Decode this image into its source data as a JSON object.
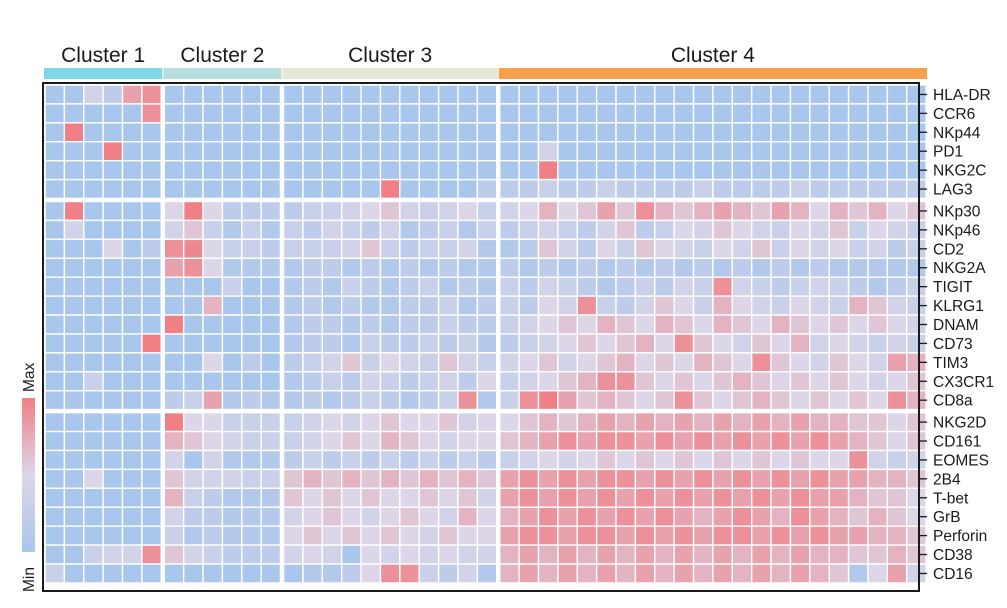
{
  "chart_data": {
    "type": "heatmap",
    "title": "",
    "xlabel": "",
    "ylabel": "",
    "scale": {
      "min_label": "Min",
      "max_label": "Max",
      "min_color": "#a9c6ec",
      "max_color": "#f07f86",
      "mid_color": "#dcd6e8"
    },
    "clusters": [
      {
        "label": "Cluster 1",
        "color": "#7fd8e8",
        "columns": 6
      },
      {
        "label": "Cluster 2",
        "color": "#b7dfe0",
        "columns": 6
      },
      {
        "label": "Cluster 3",
        "color": "#e6e7d5",
        "columns": 11
      },
      {
        "label": "Cluster 4",
        "color": "#f5a04c",
        "columns": 22
      }
    ],
    "row_groups": [
      6,
      11,
      9
    ],
    "rows": [
      "HLA-DR",
      "CCR6",
      "NKp44",
      "PD1",
      "NKG2C",
      "LAG3",
      "NKp30",
      "NKp46",
      "CD2",
      "NKG2A",
      "TIGIT",
      "KLRG1",
      "DNAM",
      "CD73",
      "TIM3",
      "CX3CR1",
      "CD8a",
      "NKG2D",
      "CD161",
      "EOMES",
      "2B4",
      "T-bet",
      "GrB",
      "Perforin",
      "CD38",
      "CD16"
    ],
    "values": [
      [
        0,
        0,
        0.4,
        0.2,
        0.8,
        0.9,
        0,
        0,
        0,
        0,
        0,
        0,
        0,
        0,
        0,
        0,
        0,
        0,
        0,
        0,
        0,
        0,
        0,
        0,
        0,
        0,
        0,
        0,
        0,
        0,
        0,
        0,
        0,
        0,
        0,
        0,
        0,
        0,
        0,
        0,
        0,
        0,
        0,
        0,
        0
      ],
      [
        0,
        0,
        0,
        0,
        0,
        0.9,
        0,
        0,
        0,
        0,
        0,
        0,
        0,
        0,
        0,
        0,
        0,
        0,
        0,
        0,
        0,
        0,
        0,
        0,
        0,
        0,
        0,
        0,
        0,
        0,
        0,
        0,
        0,
        0,
        0,
        0,
        0,
        0,
        0,
        0,
        0,
        0,
        0,
        0,
        0
      ],
      [
        0,
        1,
        0,
        0,
        0,
        0,
        0,
        0,
        0,
        0,
        0,
        0,
        0,
        0,
        0,
        0,
        0,
        0,
        0,
        0,
        0,
        0,
        0,
        0,
        0,
        0,
        0,
        0,
        0,
        0,
        0,
        0,
        0,
        0,
        0,
        0,
        0,
        0,
        0,
        0,
        0,
        0,
        0,
        0,
        0
      ],
      [
        0,
        0,
        0,
        1,
        0,
        0,
        0,
        0,
        0,
        0,
        0,
        0,
        0,
        0,
        0,
        0,
        0,
        0,
        0,
        0,
        0,
        0,
        0,
        0,
        0,
        0.4,
        0,
        0,
        0,
        0,
        0,
        0,
        0,
        0,
        0,
        0,
        0,
        0,
        0,
        0,
        0,
        0,
        0,
        0,
        0
      ],
      [
        0,
        0,
        0,
        0,
        0,
        0,
        0,
        0,
        0,
        0,
        0,
        0,
        0,
        0,
        0,
        0,
        0,
        0,
        0,
        0,
        0,
        0,
        0,
        0,
        0,
        1,
        0,
        0,
        0,
        0,
        0,
        0,
        0,
        0,
        0,
        0,
        0,
        0,
        0,
        0,
        0,
        0,
        0,
        0,
        0
      ],
      [
        0,
        0,
        0,
        0,
        0,
        0,
        0,
        0,
        0,
        0,
        0,
        0,
        0,
        0,
        0,
        0,
        0,
        1,
        0,
        0,
        0,
        0,
        0.2,
        0.2,
        0.2,
        0.3,
        0.2,
        0.2,
        0.3,
        0.2,
        0.2,
        0.2,
        0.2,
        0.3,
        0.2,
        0.2,
        0.2,
        0.2,
        0.3,
        0.2,
        0.2,
        0.2,
        0.2,
        0.2,
        0.2
      ],
      [
        0,
        1,
        0,
        0,
        0,
        0,
        0.5,
        1,
        0.5,
        0.2,
        0.2,
        0.2,
        0.2,
        0.3,
        0.3,
        0.4,
        0.5,
        0.6,
        0.4,
        0.3,
        0.4,
        0.5,
        0.3,
        0.4,
        0.5,
        0.7,
        0.5,
        0.6,
        0.8,
        0.6,
        0.9,
        0.7,
        0.6,
        0.7,
        0.8,
        0.7,
        0.6,
        0.8,
        0.7,
        0.5,
        0.7,
        0.6,
        0.7,
        0.5,
        0.6
      ],
      [
        0,
        0.4,
        0,
        0,
        0,
        0,
        0.4,
        0.6,
        0.3,
        0.1,
        0.3,
        0.1,
        0.3,
        0.2,
        0.4,
        0.3,
        0.2,
        0.4,
        0.1,
        0.2,
        0.3,
        0.1,
        0.3,
        0.2,
        0.3,
        0.4,
        0.3,
        0.2,
        0.4,
        0.6,
        0.2,
        0.3,
        0.5,
        0.4,
        0.6,
        0.5,
        0.4,
        0.3,
        0.5,
        0.4,
        0.6,
        0.3,
        0.5,
        0.4,
        0.3
      ],
      [
        0,
        0,
        0,
        0.5,
        0,
        0.2,
        0.9,
        0.95,
        0.5,
        0.3,
        0.3,
        0.2,
        0.3,
        0.3,
        0.3,
        0.4,
        0.6,
        0.3,
        0.2,
        0.3,
        0.3,
        0.4,
        0.1,
        0.1,
        0.2,
        0.6,
        0.4,
        0.2,
        0.5,
        0.3,
        0.6,
        0.5,
        0.4,
        0.3,
        0.5,
        0.4,
        0.6,
        0.3,
        0.5,
        0.4,
        0.5,
        0.3,
        0.4,
        0.2,
        0.3
      ],
      [
        0,
        0,
        0,
        0,
        0,
        0,
        0.8,
        0.9,
        0.5,
        0.1,
        0.1,
        0.1,
        0.1,
        0.2,
        0.2,
        0.1,
        0.2,
        0.1,
        0.2,
        0.1,
        0.2,
        0.1,
        0.1,
        0.2,
        0.1,
        0.2,
        0.1,
        0.2,
        0.1,
        0.2,
        0.1,
        0.2,
        0.1,
        0.2,
        0.1,
        0.2,
        0.1,
        0.2,
        0.1,
        0.2,
        0.1,
        0.1,
        0.1,
        0.1,
        0.1
      ],
      [
        0,
        0,
        0,
        0,
        0,
        0,
        0,
        0,
        0,
        0.3,
        0,
        0,
        0.1,
        0.2,
        0.1,
        0.3,
        0.2,
        0.1,
        0.2,
        0.3,
        0.1,
        0.2,
        0.1,
        0.3,
        0.2,
        0.4,
        0.3,
        0.2,
        0.1,
        0.2,
        0.3,
        0.2,
        0.4,
        0.3,
        0.9,
        0.4,
        0.3,
        0.2,
        0.3,
        0.4,
        0.3,
        0.2,
        0.1,
        0.2,
        0.3
      ],
      [
        0,
        0,
        0,
        0,
        0,
        0,
        0,
        0,
        0.7,
        0,
        0,
        0,
        0.1,
        0.2,
        0.1,
        0.2,
        0.1,
        0.1,
        0.2,
        0.2,
        0.3,
        0.1,
        0.2,
        0.3,
        0.2,
        0.5,
        0.4,
        0.9,
        0.3,
        0.2,
        0.4,
        0.6,
        0.5,
        0.3,
        0.7,
        0.5,
        0.4,
        0.3,
        0.5,
        0.4,
        0.3,
        0.7,
        0.6,
        0.4,
        0.3
      ],
      [
        0,
        0,
        0,
        0,
        0,
        0,
        1,
        0,
        0,
        0,
        0,
        0,
        0.1,
        0.2,
        0.2,
        0.1,
        0.2,
        0.1,
        0.2,
        0.2,
        0.3,
        0.2,
        0.2,
        0.3,
        0.4,
        0.5,
        0.6,
        0.5,
        0.7,
        0.6,
        0.5,
        0.7,
        0.6,
        0.5,
        0.7,
        0.6,
        0.5,
        0.7,
        0.6,
        0.5,
        0.6,
        0.5,
        0.6,
        0.5,
        0.4
      ],
      [
        0,
        0,
        0,
        0,
        0,
        1,
        0,
        0,
        0,
        0,
        0,
        0,
        0.1,
        0.2,
        0.2,
        0.1,
        0.3,
        0.2,
        0.2,
        0.3,
        0.2,
        0.3,
        0.1,
        0.2,
        0.3,
        0.4,
        0.5,
        0.6,
        0.5,
        0.6,
        0.7,
        0.5,
        0.9,
        0.6,
        0.5,
        0.4,
        0.6,
        0.5,
        0.7,
        0.4,
        0.5,
        0.4,
        0.3,
        0.4,
        0.3
      ],
      [
        0,
        0,
        0,
        0,
        0,
        0,
        0,
        0,
        0.5,
        0,
        0.2,
        0,
        0.2,
        0.3,
        0.4,
        0.6,
        0.3,
        0.5,
        0.4,
        0.3,
        0.6,
        0.4,
        0.3,
        0.4,
        0.5,
        0.6,
        0.4,
        0.5,
        0.6,
        0.7,
        0.5,
        0.6,
        0.5,
        0.7,
        0.6,
        0.5,
        0.9,
        0.6,
        0.5,
        0.4,
        0.6,
        0.5,
        0.4,
        0.8,
        0.7
      ],
      [
        0,
        0,
        0.3,
        0,
        0,
        0,
        0,
        0,
        0,
        0,
        0,
        0,
        0.1,
        0.2,
        0.3,
        0.2,
        0.4,
        0.3,
        0.2,
        0.3,
        0.4,
        0.2,
        0.5,
        0.3,
        0.4,
        0.5,
        0.6,
        0.7,
        0.9,
        0.9,
        0.6,
        0.5,
        0.6,
        0.5,
        0.6,
        0.7,
        0.6,
        0.5,
        0.6,
        0.5,
        0.6,
        0.5,
        0.4,
        0.5,
        0.6
      ],
      [
        0,
        0,
        0,
        0,
        0,
        0,
        0.2,
        0.3,
        0.8,
        0.1,
        0.2,
        0.1,
        0.1,
        0.2,
        0.1,
        0.2,
        0.3,
        0.2,
        0.1,
        0.2,
        0.3,
        0.9,
        0.1,
        0.3,
        0.9,
        1,
        0.8,
        0.6,
        0.7,
        0.6,
        0.5,
        0.6,
        0.9,
        0.6,
        0.5,
        0.6,
        0.7,
        0.6,
        0.5,
        0.6,
        0.5,
        0.6,
        0.5,
        0.9,
        0.7
      ],
      [
        0,
        0,
        0,
        0,
        0,
        0,
        1,
        0.5,
        0.5,
        0.3,
        0.3,
        0.3,
        0.3,
        0.4,
        0.5,
        0.4,
        0.5,
        0.6,
        0.5,
        0.5,
        0.6,
        0.4,
        0.5,
        0.5,
        0.6,
        0.7,
        0.6,
        0.7,
        0.8,
        0.7,
        0.8,
        0.7,
        0.8,
        0.7,
        0.8,
        0.7,
        0.8,
        0.7,
        0.8,
        0.7,
        0.7,
        0.6,
        0.6,
        0.5,
        0.6
      ],
      [
        0,
        0,
        0,
        0,
        0,
        0,
        0.7,
        0.6,
        0.5,
        0.4,
        0.3,
        0.3,
        0.3,
        0.4,
        0.5,
        0.6,
        0.5,
        0.7,
        0.6,
        0.5,
        0.4,
        0.5,
        0.5,
        0.6,
        0.7,
        0.8,
        0.9,
        0.8,
        0.9,
        0.9,
        0.8,
        0.9,
        0.8,
        0.9,
        0.8,
        0.9,
        0.8,
        0.9,
        0.8,
        0.9,
        0.8,
        0.7,
        0.6,
        0.5,
        0.6
      ],
      [
        0,
        0,
        0,
        0,
        0,
        0,
        0.4,
        0,
        0.4,
        0.1,
        0.1,
        0.1,
        0.2,
        0.3,
        0.2,
        0.3,
        0.2,
        0.3,
        0.2,
        0.3,
        0.2,
        0.3,
        0.2,
        0.3,
        0.4,
        0.5,
        0.4,
        0.5,
        0.6,
        0.5,
        0.6,
        0.5,
        0.6,
        0.5,
        0.6,
        0.5,
        0.6,
        0.5,
        0.6,
        0.5,
        0.5,
        0.9,
        0.4,
        0.3,
        0.4
      ],
      [
        0,
        0,
        0.5,
        0,
        0,
        0,
        0.6,
        0.4,
        0.4,
        0.4,
        0.3,
        0.3,
        0.6,
        0.7,
        0.6,
        0.7,
        0.6,
        0.7,
        0.6,
        0.7,
        0.6,
        0.7,
        0.6,
        0.8,
        0.9,
        0.8,
        0.9,
        0.8,
        0.9,
        0.9,
        0.8,
        0.9,
        0.8,
        0.9,
        0.8,
        0.9,
        0.8,
        0.9,
        0.8,
        0.9,
        0.8,
        0.8,
        0.7,
        0.7,
        0.6
      ],
      [
        0,
        0,
        0,
        0,
        0,
        0,
        0.7,
        0.3,
        0.2,
        0.1,
        0.1,
        0.1,
        0.6,
        0.5,
        0.6,
        0.5,
        0.6,
        0.5,
        0.5,
        0.6,
        0.5,
        0.6,
        0.4,
        0.8,
        0.9,
        0.8,
        0.9,
        0.8,
        0.9,
        0.8,
        0.9,
        0.8,
        0.9,
        0.8,
        0.9,
        0.8,
        0.9,
        0.8,
        0.9,
        0.8,
        0.8,
        0.7,
        0.6,
        0.6,
        0.5
      ],
      [
        0,
        0,
        0,
        0,
        0,
        0,
        0.4,
        0.2,
        0.2,
        0.1,
        0.1,
        0.1,
        0.4,
        0.5,
        0.6,
        0.5,
        0.4,
        0.5,
        0.6,
        0.5,
        0.4,
        0.7,
        0.5,
        0.7,
        0.8,
        0.9,
        0.8,
        0.9,
        0.8,
        0.9,
        0.8,
        0.9,
        0.8,
        0.7,
        0.8,
        0.9,
        0.8,
        0.7,
        0.9,
        0.8,
        0.7,
        0.6,
        0.7,
        0.6,
        0.5
      ],
      [
        0,
        0,
        0,
        0,
        0,
        0,
        0.3,
        0.1,
        0.2,
        0.1,
        0.1,
        0.1,
        0.5,
        0.6,
        0.5,
        0.6,
        0.5,
        0.6,
        0.5,
        0.4,
        0.6,
        0.5,
        0.5,
        0.8,
        0.9,
        0.9,
        0.8,
        0.9,
        0.9,
        0.8,
        0.9,
        0.8,
        0.9,
        0.8,
        0.9,
        0.9,
        0.8,
        0.9,
        0.8,
        0.9,
        0.8,
        0.8,
        0.7,
        0.7,
        0.6
      ],
      [
        0,
        0,
        0.3,
        0.4,
        0.4,
        0.9,
        0.6,
        0.4,
        0.3,
        0.2,
        0.2,
        0.2,
        0.4,
        0.5,
        0.4,
        0.0,
        0.5,
        0.4,
        0.5,
        0.4,
        0.5,
        0.4,
        0.4,
        0.7,
        0.8,
        0.7,
        0.8,
        0.7,
        0.8,
        0.7,
        0.8,
        0.7,
        0.8,
        0.7,
        0.8,
        0.7,
        0.8,
        0.7,
        0.8,
        0.7,
        0.7,
        0.6,
        0.6,
        0.7,
        0.6
      ],
      [
        0.3,
        0,
        0,
        0,
        0,
        0,
        0,
        0,
        0,
        0,
        0,
        0,
        0,
        0.1,
        0.1,
        0.2,
        0.5,
        0.9,
        0.9,
        0.3,
        0.2,
        0.4,
        0.1,
        0.7,
        0.8,
        0.7,
        0.8,
        0.7,
        0.8,
        0.7,
        0.8,
        0.7,
        0.8,
        0.7,
        0.8,
        0.7,
        0.8,
        0.7,
        0.8,
        0.7,
        0.6,
        0.1,
        0.5,
        0.8,
        0.4
      ]
    ]
  }
}
